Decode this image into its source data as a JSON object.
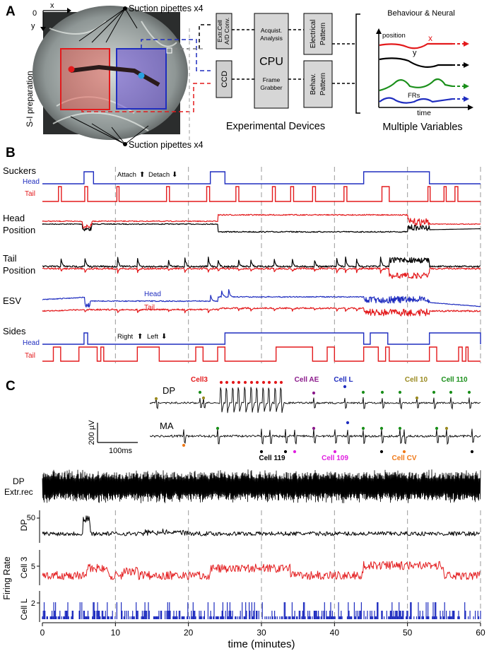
{
  "panels": {
    "a": "A",
    "b": "B",
    "c": "C"
  },
  "panel_a": {
    "axis_x": "x",
    "axis_y": "y",
    "axis_origin": "0",
    "prep_label": "S-I preparation",
    "pipettes_top": "Suction pipettes x4",
    "pipettes_bottom": "Suction pipettes x4",
    "box_extr_1": "Extr.Cell",
    "box_extr_2": "A/D Conv.",
    "box_ccd": "CCD",
    "cpu_top_1": "Acquist.",
    "cpu_top_2": "Analysis",
    "cpu_main": "CPU",
    "cpu_bottom_1": "Frame",
    "cpu_bottom_2": "Grabber",
    "elec_1": "Electrical",
    "elec_2": "Pattern",
    "behav_1": "Behav.",
    "behav_2": "Pattern",
    "devices": "Experimental Devices",
    "beh_title": "Behaviour & Neural",
    "beh_position": "position",
    "beh_x": "x",
    "beh_y": "y",
    "beh_frs": "FRs",
    "beh_time": "time",
    "multi": "Multiple Variables",
    "colors": {
      "red": "#e31a1c",
      "blue": "#1f2dbf",
      "green": "#1a8f1a",
      "gray": "#bdbdbd"
    }
  },
  "panel_b": {
    "suckers": "Suckers",
    "head": "Head",
    "tail": "Tail",
    "attach": "Attach",
    "detach": "Detach",
    "head_position_1": "Head",
    "head_position_2": "Position",
    "tail_position_1": "Tail",
    "tail_position_2": "Position",
    "esv": "ESV",
    "esv_head": "Head",
    "esv_tail": "Tail",
    "sides": "Sides",
    "sides_head": "Head",
    "sides_tail": "Tail",
    "right": "Right",
    "left": "Left"
  },
  "panel_c": {
    "dp": "DP",
    "ma": "MA",
    "scale_v": "200 µV",
    "scale_t": "100ms",
    "cell3": "Cell3",
    "cell_ae": "Cell AE",
    "cell_l": "Cell L",
    "cell_10": "Cell 10",
    "cell_110": "Cell 110",
    "cell_119": "Cell 119",
    "cell_109": "Cell 109",
    "cell_cv": "Cell CV",
    "dp_extr_1": "DP",
    "dp_extr_2": "Extr.rec",
    "fr_dp": "DP",
    "fr_cell3": "Cell 3",
    "fr_celll": "Cell L",
    "fr_label": "Firing Rate",
    "ytick_dp": "50",
    "ytick_c3": "5",
    "ytick_cl": "2",
    "xlabel": "time (minutes)",
    "xticks": [
      "0",
      "10",
      "20",
      "30",
      "40",
      "50",
      "60"
    ],
    "cell_colors": {
      "cell3": "#e31a1c",
      "cell_ae": "#8b1a8b",
      "cell_l": "#1f2dbf",
      "cell_10": "#9a8a20",
      "cell_110": "#1a8f1a",
      "cell_119": "#000000",
      "cell_109": "#e020e0",
      "cell_cv": "#f07a1a"
    }
  },
  "chart_data": {
    "type": "line",
    "x_unit": "minutes",
    "x_range": [
      0,
      60
    ],
    "xticks": [
      0,
      10,
      20,
      30,
      40,
      50,
      60
    ],
    "xlabel": "time (minutes)",
    "grid": "dashed vertical lines every 10 minutes",
    "series": [
      {
        "name": "Head",
        "panel": "Suckers",
        "color": "#1f2dbf",
        "high_intervals_min": [
          [
            5.7,
            7
          ],
          [
            23,
            25
          ],
          [
            44,
            53
          ]
        ]
      },
      {
        "name": "Tail",
        "panel": "Suckers",
        "color": "#e31a1c",
        "high_intervals_min": [
          [
            2.2,
            2.6
          ],
          [
            5.8,
            6.2
          ],
          [
            10.2,
            10.5
          ],
          [
            17,
            17.4
          ],
          [
            22.5,
            22.9
          ],
          [
            26.5,
            26.9
          ],
          [
            31.5,
            31.9
          ],
          [
            34,
            34.4
          ],
          [
            37,
            37.4
          ],
          [
            41.3,
            41.7
          ],
          [
            46.5,
            47.5
          ],
          [
            52.8,
            53.1
          ],
          [
            55,
            55.3
          ],
          [
            56.5,
            56.9
          ]
        ]
      },
      {
        "name": "Head",
        "panel": "Sides",
        "color": "#1f2dbf",
        "high_intervals_min": [
          [
            5.7,
            6.2
          ],
          [
            25,
            44
          ],
          [
            44.9,
            47.3
          ],
          [
            53,
            60
          ]
        ]
      },
      {
        "name": "Tail",
        "panel": "Sides",
        "color": "#e31a1c",
        "high_intervals_min": [
          [
            1.5,
            2.5
          ],
          [
            5,
            7.5
          ],
          [
            8,
            8.4
          ],
          [
            13,
            16
          ],
          [
            21,
            22
          ],
          [
            24,
            25
          ],
          [
            32,
            37
          ],
          [
            39,
            40
          ],
          [
            44,
            46
          ],
          [
            47,
            47.5
          ],
          [
            53,
            54
          ],
          [
            57,
            57.5
          ],
          [
            58,
            58.3
          ]
        ]
      }
    ],
    "y_ticks": {
      "DP": [
        50
      ],
      "Cell 3": [
        5
      ],
      "Cell L": [
        2
      ]
    }
  }
}
